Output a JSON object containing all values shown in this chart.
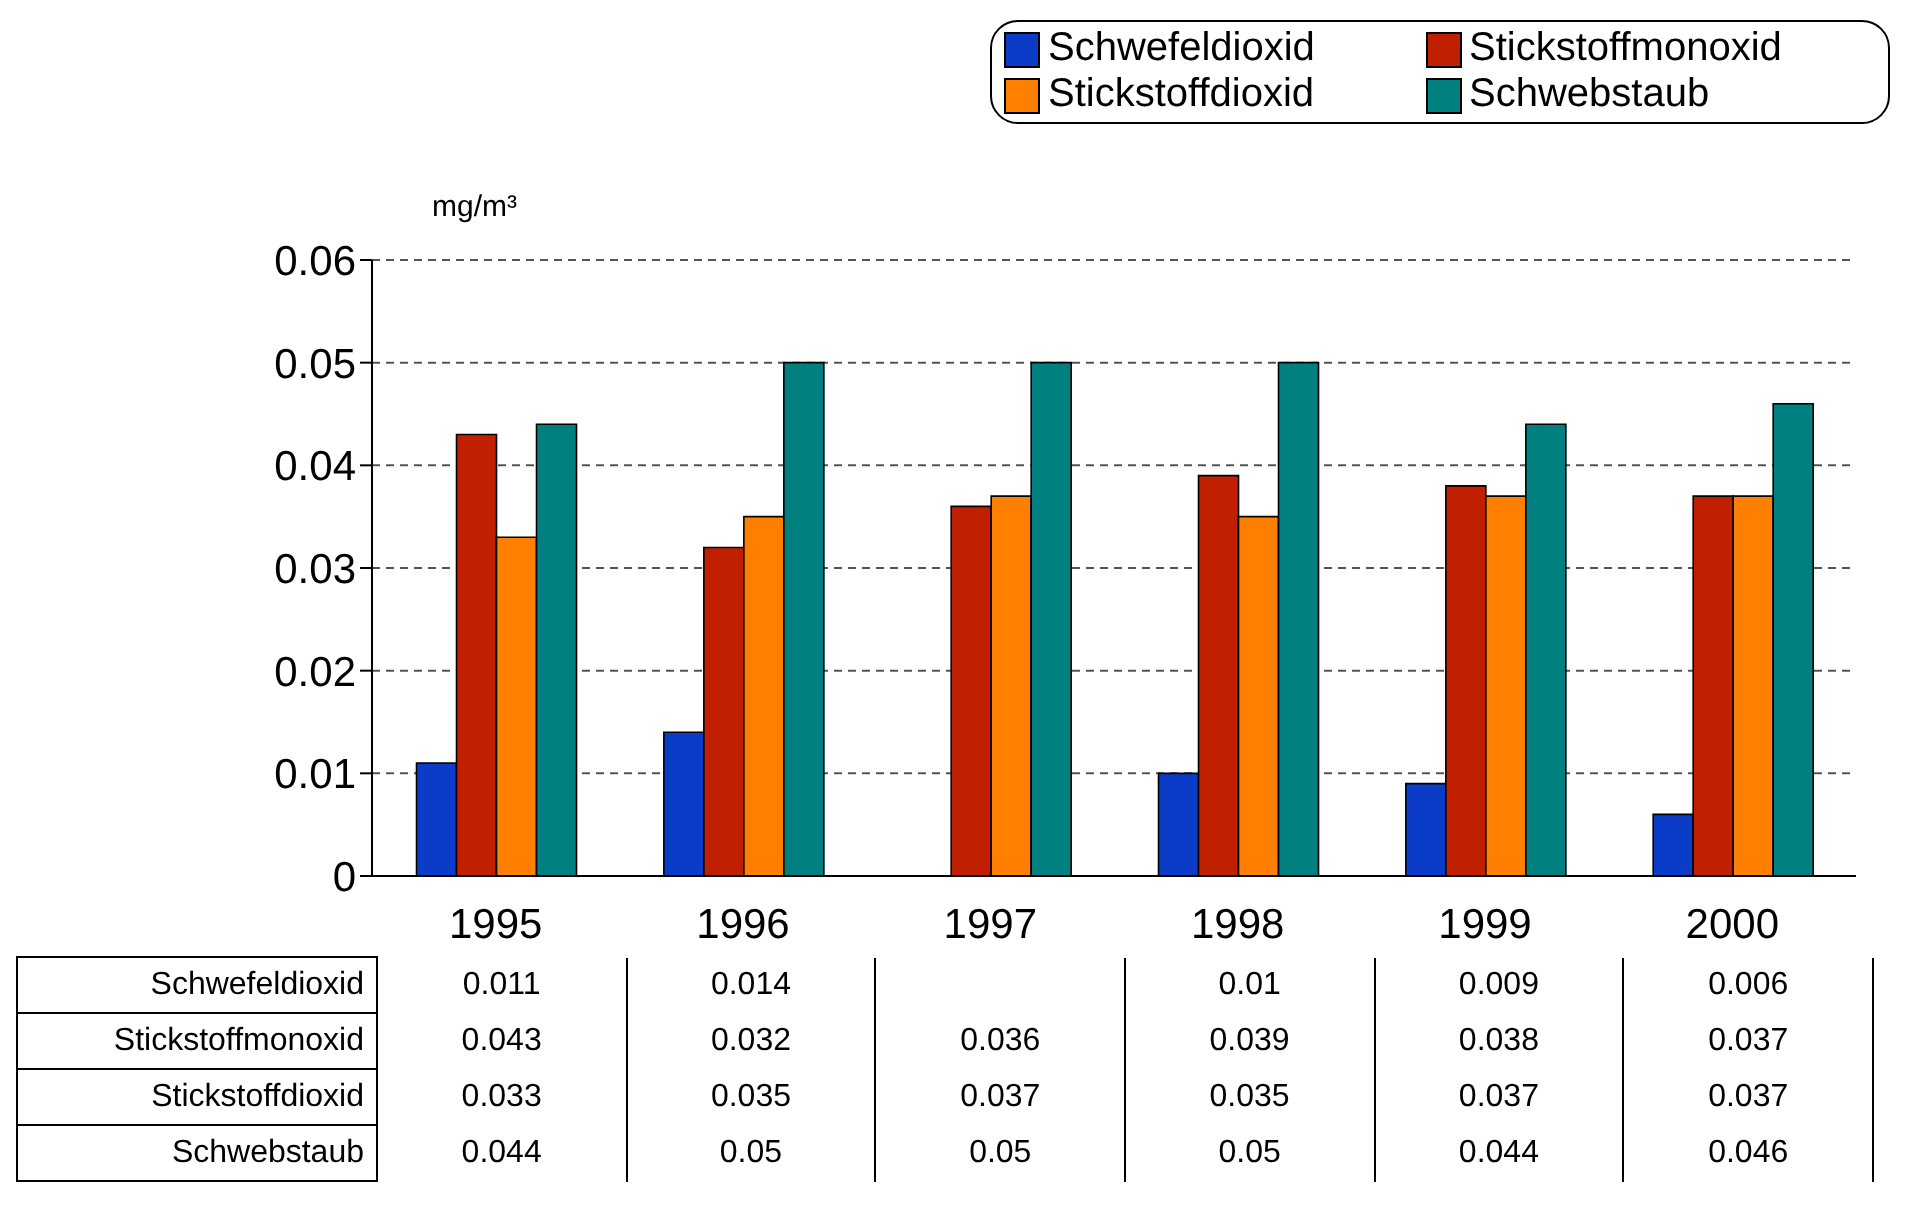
{
  "chart_data": {
    "type": "bar",
    "ylabel": "mg/m³",
    "categories": [
      "1995",
      "1996",
      "1997",
      "1998",
      "1999",
      "2000"
    ],
    "series": [
      {
        "name": "Schwefeldioxid",
        "color": "#0a3cc8",
        "values": [
          0.011,
          0.014,
          null,
          0.01,
          0.009,
          0.006
        ]
      },
      {
        "name": "Stickstoffmonoxid",
        "color": "#c02000",
        "values": [
          0.043,
          0.032,
          0.036,
          0.039,
          0.038,
          0.037
        ]
      },
      {
        "name": "Stickstoffdioxid",
        "color": "#ff8000",
        "values": [
          0.033,
          0.035,
          0.037,
          0.035,
          0.037,
          0.037
        ]
      },
      {
        "name": "Schwebstaub",
        "color": "#008080",
        "values": [
          0.044,
          0.05,
          0.05,
          0.05,
          0.044,
          0.046
        ]
      }
    ],
    "ylim": [
      0,
      0.06
    ],
    "yticks": [
      0,
      0.01,
      0.02,
      0.03,
      0.04,
      0.05,
      0.06
    ],
    "grid": "y",
    "legend": "top right",
    "data_labels": true
  }
}
